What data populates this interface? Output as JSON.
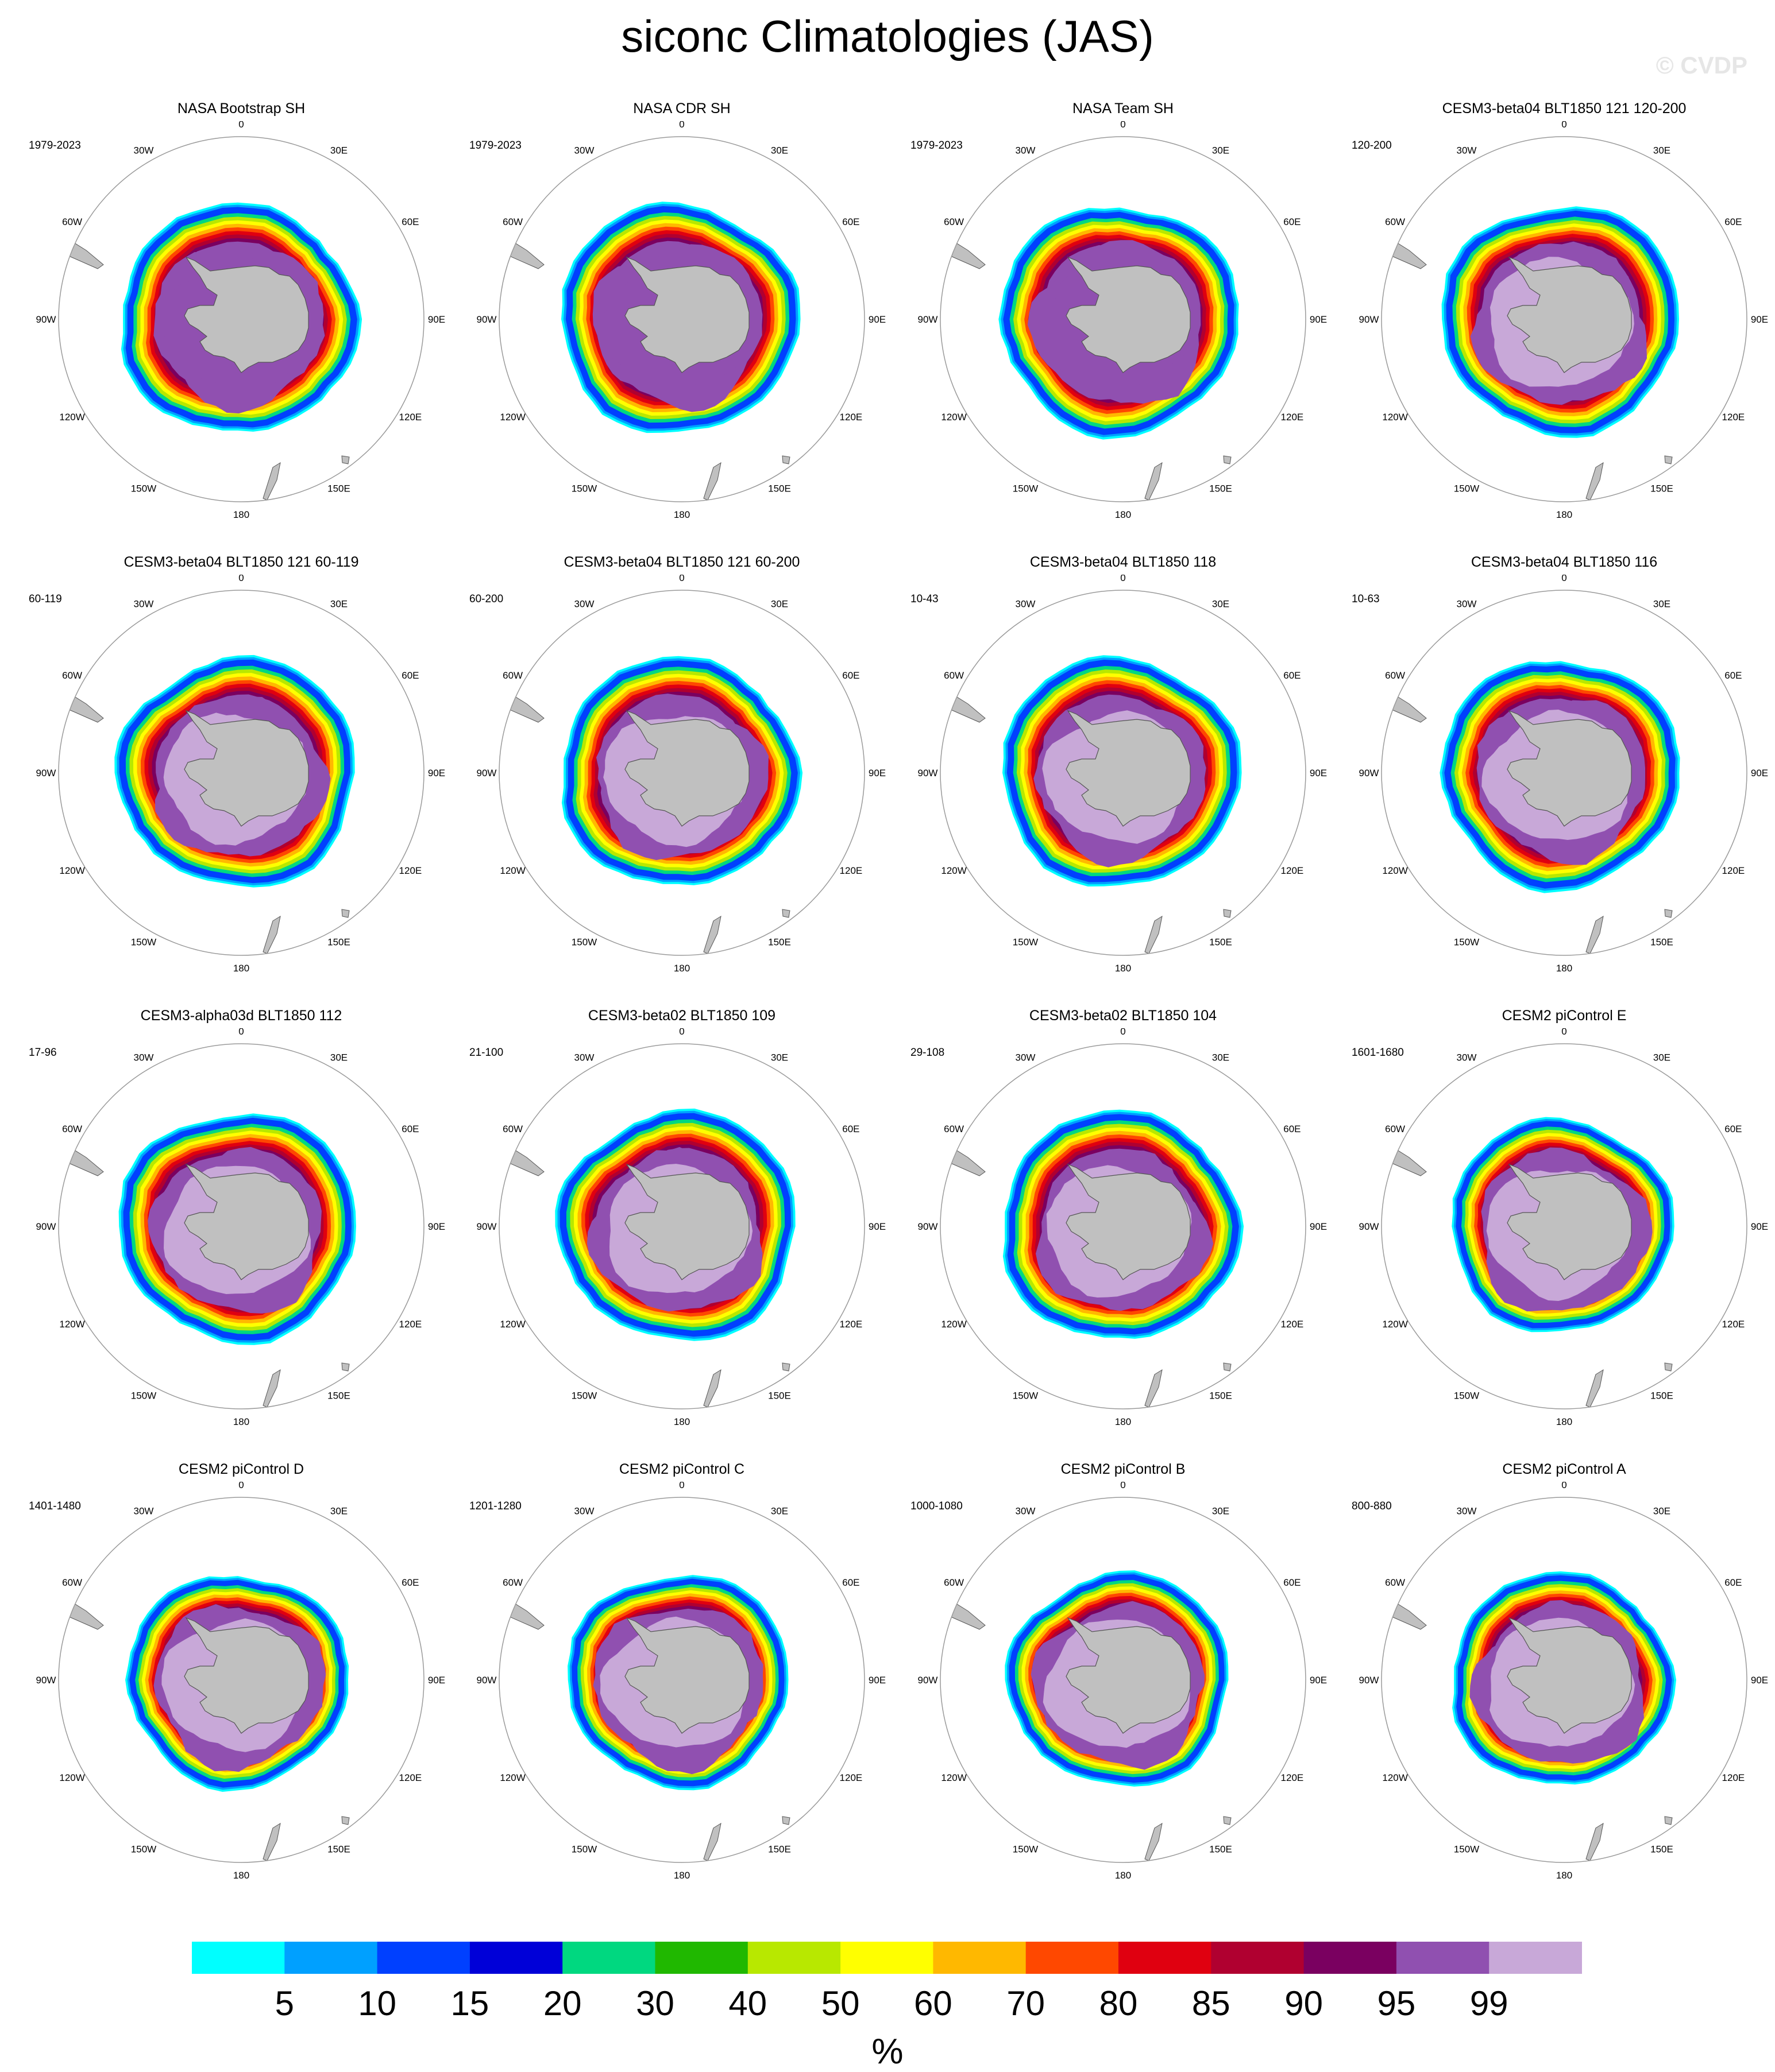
{
  "title": "siconc Climatologies (JAS)",
  "watermark": "© CVDP",
  "units_label": "%",
  "colors": {
    "land": "#c0c0c0",
    "land_edge": "#555555",
    "map_circle": "#9a9a9a",
    "contour_levels": [
      5,
      10,
      15,
      20,
      30,
      40,
      50,
      60,
      70,
      80,
      85,
      90,
      95,
      99
    ],
    "colorbar": [
      "#00ffff",
      "#00a0ff",
      "#0040ff",
      "#0000d8",
      "#00d880",
      "#20b800",
      "#b8e800",
      "#ffff00",
      "#ffb800",
      "#ff4800",
      "#e00010",
      "#b00030",
      "#7a0060",
      "#9050b0",
      "#c8a8d8"
    ]
  },
  "longitude_labels": [
    "0",
    "30E",
    "60E",
    "90E",
    "120E",
    "150E",
    "180",
    "150W",
    "120W",
    "90W",
    "60W",
    "30W"
  ],
  "chart_data": {
    "type": "heatmap",
    "projection": "south-polar-stereographic",
    "season": "JAS",
    "variable": "siconc",
    "units": "%",
    "colorbar_levels": [
      5,
      10,
      15,
      20,
      30,
      40,
      50,
      60,
      70,
      80,
      85,
      90,
      95,
      99
    ],
    "panels": [
      {
        "title": "NASA Bootstrap SH",
        "years": "1979-2023"
      },
      {
        "title": "NASA CDR SH",
        "years": "1979-2023"
      },
      {
        "title": "NASA Team SH",
        "years": "1979-2023"
      },
      {
        "title": "CESM3-beta04 BLT1850 121 120-200",
        "years": "120-200"
      },
      {
        "title": "CESM3-beta04 BLT1850 121 60-119",
        "years": "60-119"
      },
      {
        "title": "CESM3-beta04 BLT1850 121 60-200",
        "years": "60-200"
      },
      {
        "title": "CESM3-beta04 BLT1850 118",
        "years": "10-43"
      },
      {
        "title": "CESM3-beta04 BLT1850 116",
        "years": "10-63"
      },
      {
        "title": "CESM3-alpha03d BLT1850 112",
        "years": "17-96"
      },
      {
        "title": "CESM3-beta02 BLT1850 109",
        "years": "21-100"
      },
      {
        "title": "CESM3-beta02 BLT1850 104",
        "years": "29-108"
      },
      {
        "title": "CESM2 piControl E",
        "years": "1601-1680"
      },
      {
        "title": "CESM2 piControl D",
        "years": "1401-1480"
      },
      {
        "title": "CESM2 piControl C",
        "years": "1201-1280"
      },
      {
        "title": "CESM2 piControl B",
        "years": "1000-1080"
      },
      {
        "title": "CESM2 piControl A",
        "years": "800-880"
      }
    ]
  }
}
